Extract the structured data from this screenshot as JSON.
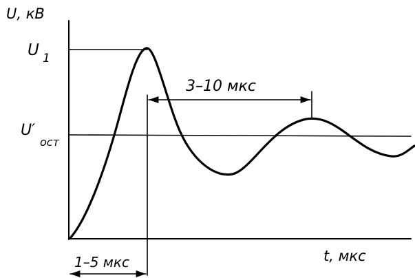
{
  "axes": {
    "y_label": "U, кВ",
    "x_label": "t, мкс"
  },
  "levels": {
    "peak_label": "U",
    "peak_sub": "1",
    "residual_label": "U′",
    "residual_sub": "ост"
  },
  "intervals": {
    "rise": "1–5 мкс",
    "period": "3–10 мкс"
  }
}
